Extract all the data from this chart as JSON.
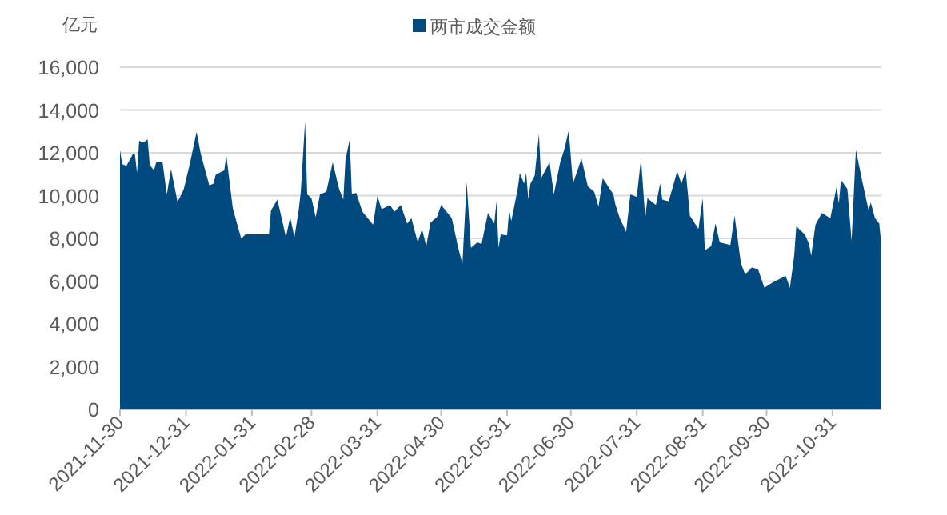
{
  "chart_data": {
    "type": "area",
    "ylabel": "亿元",
    "legend": "top",
    "grid": "y",
    "xlim": [
      "2021-11-30",
      "2022-11-23"
    ],
    "xticks": [
      "2021-11-30",
      "2021-12-31",
      "2022-01-31",
      "2022-02-28",
      "2022-03-31",
      "2022-04-30",
      "2022-05-31",
      "2022-06-30",
      "2022-07-31",
      "2022-08-31",
      "2022-09-30",
      "2022-10-31"
    ],
    "ylim": [
      0,
      16000
    ],
    "yticks": [
      {
        "value": 0,
        "label": "0"
      },
      {
        "value": 2000,
        "label": "2,000"
      },
      {
        "value": 4000,
        "label": "4,000"
      },
      {
        "value": 6000,
        "label": "6,000"
      },
      {
        "value": 8000,
        "label": "8,000"
      },
      {
        "value": 10000,
        "label": "10,000"
      },
      {
        "value": 12000,
        "label": "12,000"
      },
      {
        "value": 14000,
        "label": "14,000"
      },
      {
        "value": 16000,
        "label": "16,000"
      }
    ],
    "x": [
      "2021-11-30",
      "2021-12-01",
      "2021-12-03",
      "2021-12-06",
      "2021-12-07",
      "2021-12-08",
      "2021-12-09",
      "2021-12-11",
      "2021-12-13",
      "2021-12-14",
      "2021-12-16",
      "2021-12-17",
      "2021-12-20",
      "2021-12-22",
      "2021-12-24",
      "2021-12-27",
      "2021-12-28",
      "2021-12-30",
      "2022-01-02",
      "2022-01-05",
      "2022-01-07",
      "2022-01-11",
      "2022-01-13",
      "2022-01-14",
      "2022-01-18",
      "2022-01-19",
      "2022-01-20",
      "2022-01-22",
      "2022-01-24",
      "2022-01-26",
      "2022-01-28",
      "2022-02-08",
      "2022-02-09",
      "2022-02-12",
      "2022-02-14",
      "2022-02-16",
      "2022-02-18",
      "2022-02-20",
      "2022-02-22",
      "2022-02-23",
      "2022-02-25",
      "2022-02-26",
      "2022-02-28",
      "2022-03-02",
      "2022-03-04",
      "2022-03-07",
      "2022-03-10",
      "2022-03-13",
      "2022-03-15",
      "2022-03-16",
      "2022-03-18",
      "2022-03-19",
      "2022-03-21",
      "2022-03-24",
      "2022-03-29",
      "2022-03-31",
      "2022-04-02",
      "2022-04-06",
      "2022-04-08",
      "2022-04-11",
      "2022-04-14",
      "2022-04-16",
      "2022-04-19",
      "2022-04-21",
      "2022-04-23",
      "2022-04-25",
      "2022-04-28",
      "2022-04-30",
      "2022-05-05",
      "2022-05-08",
      "2022-05-10",
      "2022-05-12",
      "2022-05-14",
      "2022-05-17",
      "2022-05-19",
      "2022-05-22",
      "2022-05-25",
      "2022-05-26",
      "2022-05-27",
      "2022-05-28",
      "2022-05-31",
      "2022-06-01",
      "2022-06-02",
      "2022-06-05",
      "2022-06-06",
      "2022-06-08",
      "2022-06-09",
      "2022-06-10",
      "2022-06-11",
      "2022-06-13",
      "2022-06-15",
      "2022-06-16",
      "2022-06-20",
      "2022-06-22",
      "2022-06-25",
      "2022-06-27",
      "2022-06-29",
      "2022-07-01",
      "2022-07-05",
      "2022-07-08",
      "2022-07-11",
      "2022-07-13",
      "2022-07-15",
      "2022-07-20",
      "2022-07-21",
      "2022-07-23",
      "2022-07-26",
      "2022-07-28",
      "2022-07-31",
      "2022-08-02",
      "2022-08-04",
      "2022-08-05",
      "2022-08-09",
      "2022-08-11",
      "2022-08-12",
      "2022-08-15",
      "2022-08-19",
      "2022-08-21",
      "2022-08-23",
      "2022-08-25",
      "2022-08-29",
      "2022-08-31",
      "2022-09-01",
      "2022-09-04",
      "2022-09-06",
      "2022-09-08",
      "2022-09-13",
      "2022-09-15",
      "2022-09-18",
      "2022-09-20",
      "2022-09-23",
      "2022-09-26",
      "2022-09-29",
      "2022-10-03",
      "2022-10-09",
      "2022-10-11",
      "2022-10-13",
      "2022-10-14",
      "2022-10-18",
      "2022-10-20",
      "2022-10-21",
      "2022-10-23",
      "2022-10-26",
      "2022-10-30",
      "2022-11-02",
      "2022-11-03",
      "2022-11-04",
      "2022-11-07",
      "2022-11-09",
      "2022-11-11",
      "2022-11-14",
      "2022-11-17",
      "2022-11-18",
      "2022-11-20",
      "2022-11-22",
      "2022-11-23"
    ],
    "series": [
      {
        "name": "两市成交金额",
        "color": "#004a80",
        "values": [
          12130,
          11480,
          11380,
          11930,
          11930,
          11060,
          12560,
          12480,
          12630,
          11430,
          11180,
          11560,
          11560,
          10060,
          11230,
          9730,
          9880,
          10310,
          11560,
          12980,
          11930,
          10480,
          10560,
          10980,
          11180,
          11880,
          11060,
          9430,
          8690,
          7990,
          8190,
          8190,
          9310,
          9810,
          8940,
          8060,
          8990,
          8060,
          9310,
          10180,
          13480,
          10060,
          9880,
          8990,
          10060,
          10180,
          11560,
          10310,
          9810,
          11680,
          12630,
          10060,
          10130,
          9240,
          8640,
          9980,
          9360,
          9560,
          9240,
          9560,
          8690,
          8940,
          7810,
          8440,
          7640,
          8740,
          8990,
          9560,
          8940,
          7560,
          6810,
          10630,
          7560,
          7810,
          7740,
          9190,
          8690,
          9730,
          7560,
          8190,
          8140,
          9310,
          8810,
          10310,
          11060,
          10560,
          11060,
          9810,
          10560,
          10930,
          12880,
          10810,
          11560,
          10060,
          11560,
          12180,
          13050,
          10560,
          11730,
          10430,
          10180,
          9480,
          10810,
          10060,
          9560,
          8940,
          8310,
          10060,
          9930,
          11730,
          8940,
          9880,
          9560,
          10560,
          9810,
          9730,
          11130,
          10560,
          11180,
          9060,
          8440,
          9880,
          7440,
          7640,
          8690,
          7810,
          7690,
          9060,
          6810,
          6310,
          6640,
          6560,
          5690,
          5940,
          6240,
          5690,
          7190,
          8560,
          8190,
          7740,
          7190,
          8640,
          9190,
          8940,
          10430,
          9630,
          10730,
          10310,
          7890,
          12130,
          10680,
          9310,
          9680,
          8940,
          8690,
          7690
        ]
      }
    ]
  }
}
